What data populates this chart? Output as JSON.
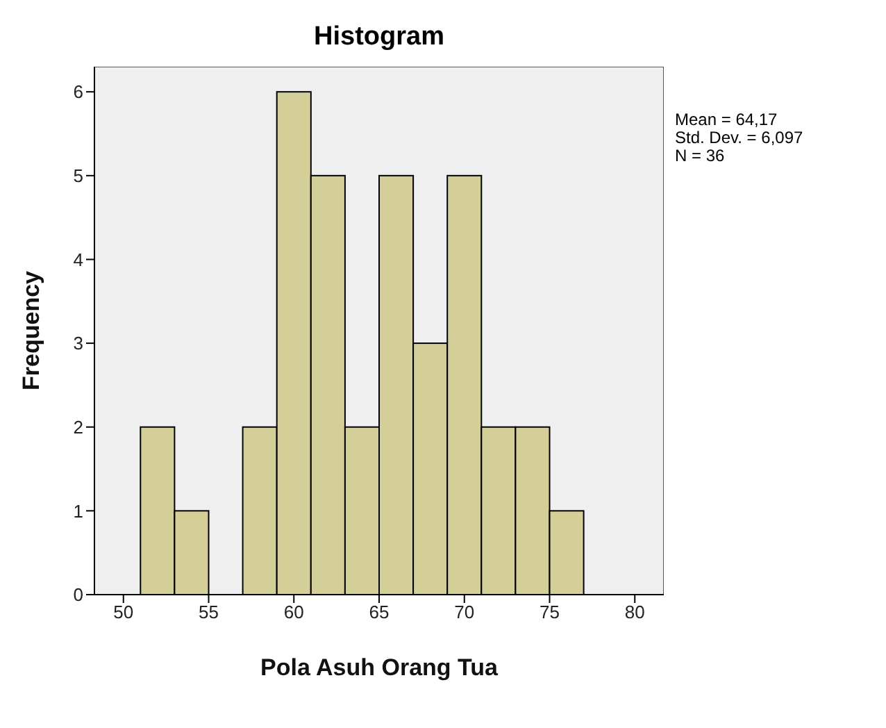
{
  "chart_data": {
    "type": "histogram",
    "title": "Histogram",
    "xlabel": "Pola Asuh Orang Tua",
    "ylabel": "Frequency",
    "bins": [
      51,
      53,
      55,
      57,
      59,
      61,
      63,
      65,
      67,
      69,
      71,
      73,
      75,
      77
    ],
    "values": [
      2,
      1,
      0,
      2,
      6,
      5,
      2,
      5,
      3,
      5,
      2,
      2,
      1
    ],
    "color": "#d3cf96",
    "xlim": [
      48.3,
      81.7
    ],
    "xticks": [
      50,
      55,
      60,
      65,
      70,
      75,
      80
    ],
    "ylim": [
      0,
      6.3
    ],
    "yticks": [
      0,
      1,
      2,
      3,
      4,
      5,
      6
    ],
    "annotations": [
      "Mean = 64,17",
      "Std. Dev. = 6,097",
      "N = 36"
    ]
  }
}
